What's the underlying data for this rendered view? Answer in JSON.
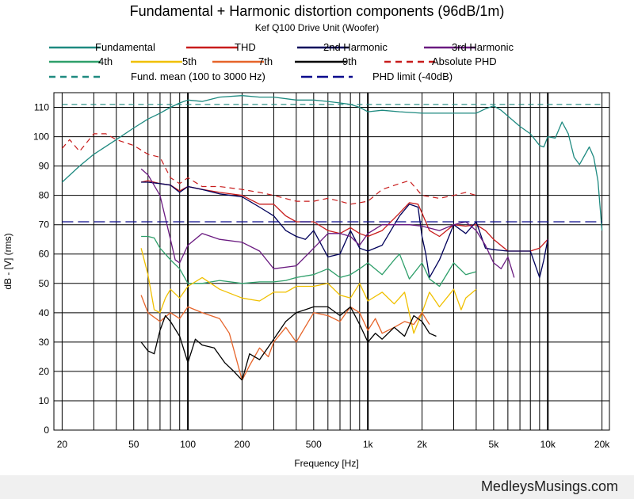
{
  "chart_data": {
    "type": "line",
    "title": "Fundamental + Harmonic distortion components (96dB/1m)",
    "subtitle": "Kef Q100 Drive Unit (Woofer)",
    "xlabel": "Frequency [Hz]",
    "ylabel": "dB - [V]  (rms)",
    "x_scale": "log",
    "xlim": [
      18,
      22000
    ],
    "ylim": [
      0,
      115
    ],
    "xticks": [
      {
        "v": 20,
        "label": "20"
      },
      {
        "v": 50,
        "label": "50"
      },
      {
        "v": 100,
        "label": "100"
      },
      {
        "v": 200,
        "label": "200"
      },
      {
        "v": 500,
        "label": "500"
      },
      {
        "v": 1000,
        "label": "1k"
      },
      {
        "v": 2000,
        "label": "2k"
      },
      {
        "v": 5000,
        "label": "5k"
      },
      {
        "v": 10000,
        "label": "10k"
      },
      {
        "v": 20000,
        "label": "20k"
      }
    ],
    "yticks": [
      0,
      10,
      20,
      30,
      40,
      50,
      60,
      70,
      80,
      90,
      100,
      110
    ],
    "grid": true,
    "legend_position": "top",
    "series": [
      {
        "name": "Fundamental",
        "color": "#1e8a80",
        "style": "solid",
        "x": [
          20,
          25,
          30,
          40,
          50,
          60,
          70,
          80,
          90,
          100,
          120,
          150,
          200,
          250,
          300,
          400,
          500,
          600,
          700,
          800,
          900,
          1000,
          1200,
          1500,
          2000,
          2500,
          3000,
          3500,
          4000,
          4500,
          5000,
          5500,
          6000,
          7000,
          8000,
          9000,
          9500,
          10000,
          11000,
          12000,
          13000,
          14000,
          15000,
          17000,
          18000,
          19000,
          20000
        ],
        "y": [
          84.5,
          90,
          94,
          99,
          103,
          106,
          108,
          110,
          111.5,
          112.5,
          112,
          113.5,
          114,
          113.5,
          113.5,
          112.5,
          112.5,
          112,
          111.5,
          111,
          110,
          108.5,
          109,
          108.5,
          108,
          108,
          108,
          108,
          108,
          109.5,
          110.5,
          109,
          107,
          103.5,
          101,
          97,
          96.5,
          100,
          99.5,
          105,
          101,
          93,
          90.5,
          96.5,
          93,
          85,
          68
        ]
      },
      {
        "name": "THD",
        "color": "#c81c1c",
        "style": "solid",
        "x": [
          55,
          60,
          70,
          80,
          90,
          100,
          120,
          150,
          200,
          250,
          300,
          350,
          400,
          500,
          600,
          700,
          800,
          900,
          1000,
          1200,
          1500,
          1700,
          1900,
          2000,
          2200,
          2500,
          3000,
          3500,
          4000,
          4500,
          5000,
          6000,
          7000,
          8000,
          9000,
          10000
        ],
        "y": [
          84.5,
          85,
          84,
          83.5,
          81.5,
          83,
          82,
          81,
          80,
          77,
          77,
          73,
          71,
          71,
          68,
          67,
          69,
          67,
          66,
          68,
          74,
          77.5,
          77,
          74,
          68,
          66,
          70,
          69.5,
          70,
          68,
          65,
          61,
          61,
          61,
          62,
          65
        ]
      },
      {
        "name": "2nd Harmonic",
        "color": "#00005a",
        "style": "solid",
        "x": [
          55,
          60,
          70,
          80,
          90,
          100,
          120,
          150,
          200,
          250,
          300,
          350,
          400,
          450,
          500,
          600,
          700,
          800,
          900,
          1000,
          1200,
          1500,
          1700,
          1900,
          2000,
          2100,
          2200,
          2500,
          3000,
          3500,
          4000,
          4500,
          5000,
          6000,
          7000,
          8000,
          9000,
          9500,
          10000
        ],
        "y": [
          84.5,
          84.5,
          84,
          83.5,
          81,
          83,
          82,
          80.5,
          79.5,
          76,
          73,
          68,
          66,
          65,
          68,
          59,
          60,
          68,
          62,
          61,
          63,
          73,
          77,
          76,
          66,
          60,
          52,
          58,
          70,
          67,
          71,
          62,
          61.5,
          61,
          61,
          61,
          52,
          58,
          65
        ]
      },
      {
        "name": "3rd Harmonic",
        "color": "#6a1a80",
        "style": "solid",
        "x": [
          55,
          60,
          70,
          80,
          85,
          90,
          100,
          120,
          150,
          200,
          250,
          300,
          400,
          500,
          600,
          700,
          800,
          900,
          1000,
          1200,
          1500,
          1700,
          2000,
          2500,
          3000,
          3500,
          4000,
          4500,
          5000,
          5500,
          6000,
          6500
        ],
        "y": [
          89,
          87,
          80,
          65,
          58,
          57,
          63,
          67,
          65,
          64,
          61,
          55,
          56,
          62,
          67,
          67,
          66,
          63,
          67,
          70,
          70,
          70,
          69.5,
          68,
          70,
          71,
          68,
          63,
          57,
          55,
          59,
          52
        ]
      },
      {
        "name": "4th",
        "color": "#2e9f6a",
        "style": "solid",
        "x": [
          55,
          60,
          65,
          70,
          75,
          80,
          90,
          100,
          120,
          150,
          200,
          250,
          300,
          350,
          400,
          500,
          600,
          700,
          800,
          900,
          1000,
          1200,
          1400,
          1500,
          1700,
          2000,
          2200,
          2500,
          3000,
          3500,
          4000
        ],
        "y": [
          66,
          66,
          65.5,
          62,
          60,
          58,
          55,
          50,
          50,
          51,
          50,
          50.5,
          50.5,
          51,
          52,
          53,
          55,
          52,
          53,
          55,
          57,
          53,
          58,
          60,
          51.5,
          57,
          51.5,
          49,
          57,
          53,
          54
        ]
      },
      {
        "name": "5th",
        "color": "#f0c000",
        "style": "solid",
        "x": [
          55,
          60,
          65,
          70,
          75,
          80,
          90,
          100,
          120,
          150,
          200,
          250,
          300,
          350,
          400,
          500,
          600,
          700,
          800,
          900,
          1000,
          1200,
          1400,
          1600,
          1800,
          2000,
          2200,
          2500,
          3000,
          3300,
          3500,
          4000
        ],
        "y": [
          62,
          53,
          41,
          40,
          45,
          48,
          45,
          49,
          52,
          48,
          45,
          44,
          47,
          47,
          49,
          49,
          50,
          46,
          45,
          50,
          44,
          47,
          43,
          47,
          33,
          40,
          47,
          42,
          48,
          41,
          45,
          48
        ]
      },
      {
        "name": "7th",
        "color": "#e6642a",
        "style": "solid",
        "x": [
          55,
          60,
          70,
          80,
          90,
          100,
          120,
          150,
          170,
          200,
          220,
          250,
          280,
          300,
          350,
          400,
          500,
          600,
          700,
          800,
          900,
          1000,
          1100,
          1200,
          1400,
          1600,
          1800,
          2000,
          2200
        ],
        "y": [
          46,
          40,
          37,
          40,
          38,
          42,
          40,
          38,
          33,
          17,
          22,
          28,
          25,
          30,
          35,
          30,
          40,
          39,
          37,
          42,
          40,
          34,
          38,
          33,
          35,
          37,
          36,
          40,
          36
        ]
      },
      {
        "name": "9th",
        "color": "#000000",
        "style": "solid",
        "x": [
          55,
          60,
          65,
          70,
          75,
          80,
          90,
          100,
          110,
          120,
          140,
          160,
          180,
          200,
          220,
          250,
          300,
          350,
          400,
          500,
          600,
          700,
          800,
          900,
          1000,
          1100,
          1200,
          1400,
          1600,
          1800,
          2000,
          2200,
          2400
        ],
        "y": [
          30,
          27,
          26,
          34,
          39,
          37,
          32,
          23,
          31,
          29,
          28,
          23,
          20,
          17,
          26,
          24,
          31,
          37,
          40,
          42,
          42,
          39,
          42,
          36,
          30,
          33,
          31,
          35,
          32,
          39,
          37,
          33,
          32
        ]
      },
      {
        "name": "Absolute PHD",
        "color": "#c81c1c",
        "style": "dashed",
        "x": [
          20,
          22,
          25,
          30,
          35,
          40,
          50,
          60,
          70,
          80,
          90,
          100,
          120,
          150,
          200,
          250,
          300,
          400,
          500,
          600,
          700,
          800,
          1000,
          1200,
          1500,
          1700,
          2000,
          2500,
          3000,
          3500,
          4000
        ],
        "y": [
          96,
          99,
          95,
          101,
          101,
          99,
          97,
          94,
          93,
          86,
          84,
          86,
          83,
          83,
          82,
          81,
          80,
          78,
          78,
          79,
          78,
          77,
          78,
          82,
          84,
          85,
          80,
          79,
          80,
          81,
          80
        ]
      },
      {
        "name": "Fund. mean (100 to 3000 Hz)",
        "color": "#1e8a80",
        "style": "dashed",
        "x": [
          20,
          20000
        ],
        "y": [
          111,
          111
        ]
      },
      {
        "name": "PHD limit (-40dB)",
        "color": "#0a0a8c",
        "style": "dashed-long",
        "x": [
          20,
          20000
        ],
        "y": [
          71,
          71
        ]
      }
    ]
  },
  "footer": {
    "site": "MedleysMusings.com"
  }
}
